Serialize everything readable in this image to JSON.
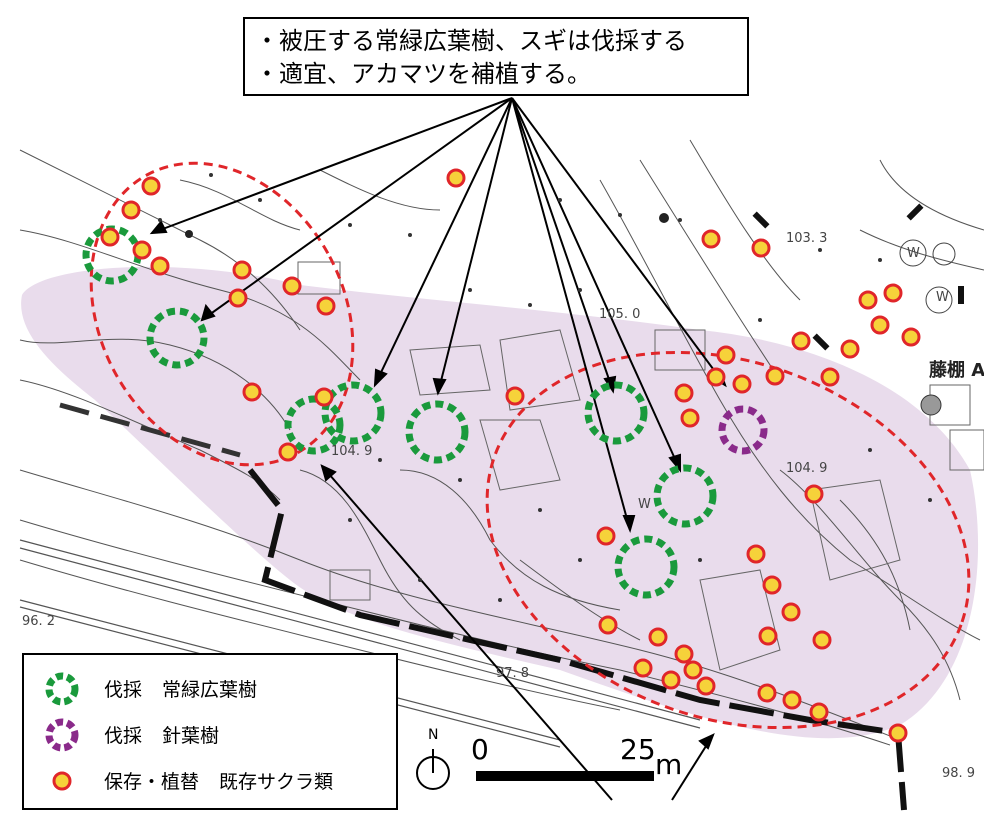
{
  "callout": {
    "line1": "・被圧する常緑広葉樹、スギは伐採する",
    "line2": "・適宜、アカマツを補植する。"
  },
  "legend": {
    "items": [
      {
        "symbol": "green-dashed-ring",
        "label_a": "伐採",
        "label_b": "常緑広葉樹"
      },
      {
        "symbol": "purple-dashed-ring",
        "label_a": "伐採",
        "label_b": "針葉樹"
      },
      {
        "symbol": "orange-dot",
        "label_a": "保存・植替",
        "label_b": "既存サクラ類"
      }
    ]
  },
  "scale": {
    "north": "N",
    "start": "0",
    "end": "25",
    "unit": "m"
  },
  "spot_heights": {
    "a": "103. 3",
    "b": "105. 0",
    "c": "104. 9",
    "d": "104. 9",
    "e": "96. 2",
    "f": "97. 8",
    "g": "98. 9"
  },
  "map_labels": {
    "building": "藤棚 A",
    "w1": "W",
    "w2": "W",
    "w3": "W"
  },
  "colors": {
    "green_ring": "#1a9a3c",
    "purple_ring": "#8a2a8a",
    "dot_fill": "#f6d23a",
    "dot_ring": "#e0262a",
    "zone": "#e9dcec",
    "dashed_boundary": "#e0262a"
  }
}
